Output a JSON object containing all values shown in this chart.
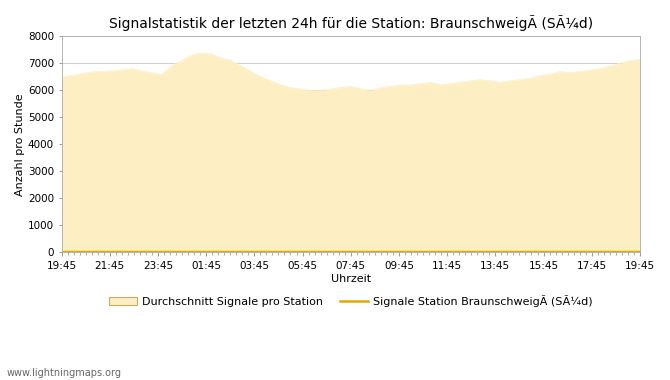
{
  "title": "Signalstatistik der letzten 24h für die Station: BraunschweigÃ (SÃ¼d)",
  "xlabel": "Uhrzeit",
  "ylabel": "Anzahl pro Stunde",
  "xlabels": [
    "19:45",
    "21:45",
    "23:45",
    "01:45",
    "03:45",
    "05:45",
    "07:45",
    "09:45",
    "11:45",
    "13:45",
    "15:45",
    "17:45",
    "19:45"
  ],
  "ylim": [
    0,
    8000
  ],
  "yticks": [
    0,
    1000,
    2000,
    3000,
    4000,
    5000,
    6000,
    7000,
    8000
  ],
  "fill_color": "#fdefc3",
  "line_color": "#e6a800",
  "background_color": "#ffffff",
  "grid_color": "#c8c8c8",
  "title_fontsize": 10,
  "axis_fontsize": 8,
  "tick_fontsize": 7.5,
  "watermark": "www.lightningmaps.org",
  "legend_fill_label": "Durchschnitt Signale pro Station",
  "legend_line_label": "Signale Station BraunschweigÃ (SÃ¼d)",
  "avg_values": [
    6500,
    6550,
    6620,
    6680,
    6700,
    6720,
    6750,
    6800,
    6720,
    6650,
    6580,
    6900,
    7100,
    7300,
    7380,
    7350,
    7200,
    7100,
    6900,
    6700,
    6500,
    6350,
    6200,
    6100,
    6050,
    6000,
    6000,
    6050,
    6100,
    6150,
    6050,
    6000,
    6100,
    6150,
    6200,
    6200,
    6250,
    6300,
    6200,
    6250,
    6300,
    6350,
    6400,
    6350,
    6300,
    6350,
    6400,
    6450,
    6550,
    6600,
    6700,
    6650,
    6700,
    6750,
    6800,
    6900,
    7000,
    7100,
    7150
  ],
  "station_values": [
    50,
    50,
    50,
    50,
    50,
    50,
    50,
    50,
    50,
    50,
    50,
    50,
    50,
    50,
    50,
    50,
    50,
    50,
    50,
    50,
    50,
    50,
    50,
    50,
    50,
    50,
    50,
    50,
    50,
    50,
    50,
    50,
    50,
    50,
    50,
    50,
    50,
    50,
    50,
    50,
    50,
    50,
    50,
    50,
    50,
    50,
    50,
    50,
    50,
    50,
    50,
    50,
    50,
    50,
    50,
    50,
    50,
    50,
    50
  ]
}
